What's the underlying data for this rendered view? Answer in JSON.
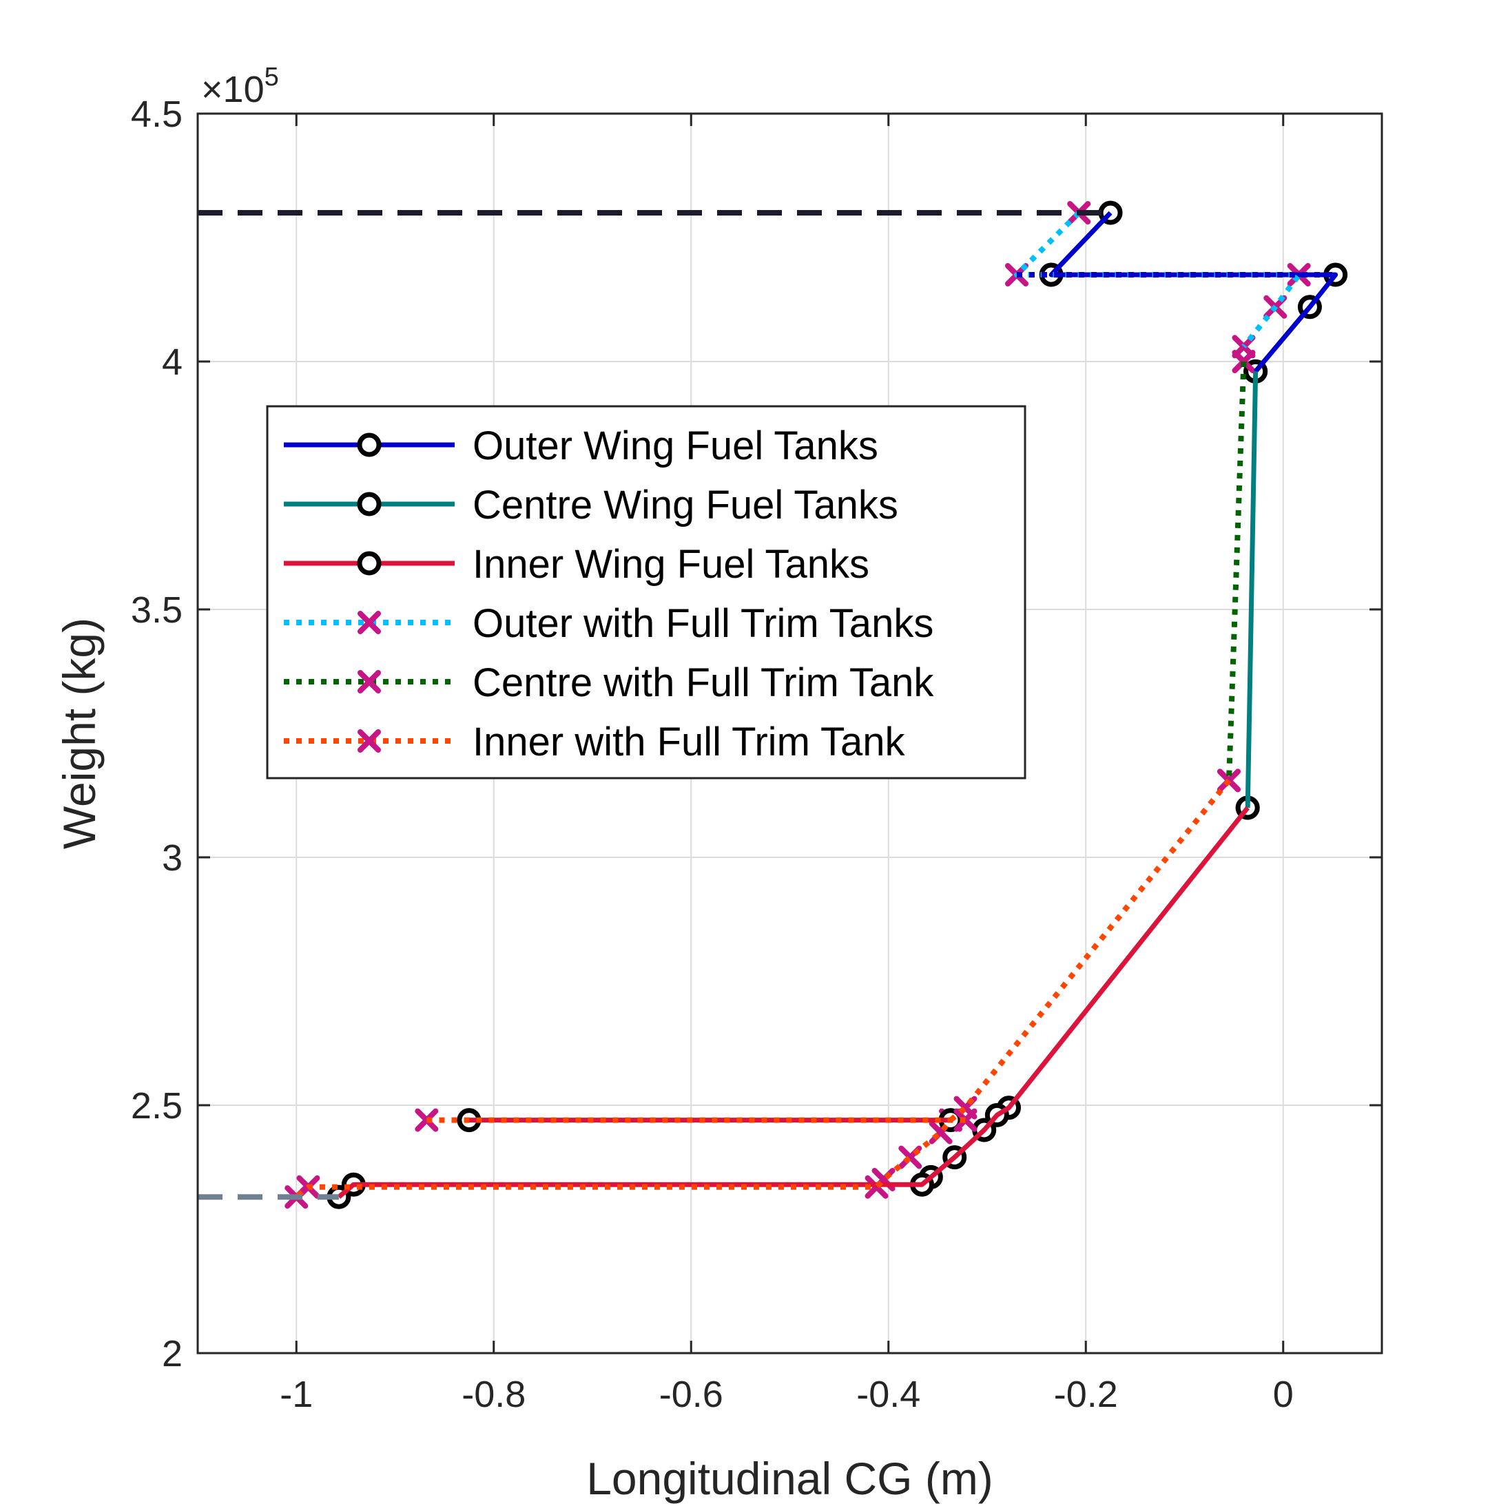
{
  "chart_data": {
    "type": "line",
    "xlabel": "Longitudinal CG (m)",
    "ylabel": "Weight (kg)",
    "xlim": [
      -1.1,
      0.1
    ],
    "ylim": [
      200000,
      450000
    ],
    "xticks": [
      -1,
      -0.8,
      -0.6,
      -0.4,
      -0.2,
      0
    ],
    "xtick_labels": [
      "-1",
      "-0.8",
      "-0.6",
      "-0.4",
      "-0.2",
      "0"
    ],
    "yticks": [
      200000,
      250000,
      300000,
      350000,
      400000,
      450000
    ],
    "ytick_labels": [
      "2",
      "2.5",
      "3",
      "3.5",
      "4",
      "4.5"
    ],
    "y_exponent": {
      "base": "×10",
      "power": "5"
    },
    "grid": true,
    "legend_position": "upper-left inside",
    "series": [
      {
        "name": "Outer Wing Fuel Tanks",
        "color": "#0000CD",
        "style": "solid",
        "marker": "circle",
        "x": [
          -0.175,
          -0.235,
          0.053,
          0.027,
          -0.028
        ],
        "y": [
          430000,
          417500,
          417500,
          411000,
          398000
        ]
      },
      {
        "name": "Centre Wing Fuel Tanks",
        "color": "#008080",
        "style": "solid",
        "marker": "circle",
        "x": [
          -0.028,
          -0.036
        ],
        "y": [
          398000,
          310000
        ]
      },
      {
        "name": "Inner Wing Fuel Tanks",
        "color": "#DC143C",
        "style": "solid",
        "marker": "circle",
        "x": [
          -0.036,
          -0.278,
          -0.29,
          -0.303,
          -0.333,
          -0.357,
          -0.366,
          -0.942,
          -0.957
        ],
        "y": [
          310000,
          249500,
          248000,
          245000,
          239500,
          235500,
          234000,
          234000,
          231500
        ]
      },
      {
        "name": "Outer with Full Trim Tanks",
        "color": "#00BFFF",
        "style": "dotted",
        "marker": "x",
        "x": [
          -0.207,
          -0.27,
          0.016,
          -0.008,
          -0.04
        ],
        "y": [
          430000,
          417500,
          417500,
          411000,
          403000
        ]
      },
      {
        "name": "Centre with Full Trim Tank",
        "color": "#006400",
        "style": "dotted",
        "marker": "x",
        "x": [
          -0.04,
          -0.055
        ],
        "y": [
          400000,
          315500
        ]
      },
      {
        "name": "Inner with Full Trim Tank",
        "color": "#FF4500",
        "style": "dotted",
        "marker": "x",
        "x": [
          -0.055,
          -0.322,
          -0.337,
          -0.347,
          -0.378,
          -0.405,
          -0.412,
          -0.988,
          -1.0
        ],
        "y": [
          315500,
          249500,
          247000,
          244500,
          239500,
          235000,
          233500,
          233500,
          231500
        ]
      },
      {
        "name": "",
        "color": "#0000CD",
        "style": "dotted",
        "marker": "none",
        "x": [
          -0.27,
          0.053
        ],
        "y": [
          417500,
          417500
        ]
      },
      {
        "name": "",
        "color": "#DC143C",
        "style": "solid",
        "marker": "circle",
        "x": [
          -0.337,
          -0.825
        ],
        "y": [
          247000,
          247000
        ]
      },
      {
        "name": "",
        "color": "#FF4500",
        "style": "dotted",
        "marker": "x",
        "x": [
          -0.322,
          -0.868
        ],
        "y": [
          247000,
          247000
        ]
      },
      {
        "name": "",
        "color": "#1C1C2E",
        "style": "dashed",
        "marker": "none",
        "x": [
          -1.1,
          -0.175
        ],
        "y": [
          430000,
          430000
        ]
      },
      {
        "name": "",
        "color": "#708090",
        "style": "dashed",
        "marker": "none",
        "x": [
          -1.1,
          -0.957
        ],
        "y": [
          231500,
          231500
        ]
      }
    ]
  }
}
